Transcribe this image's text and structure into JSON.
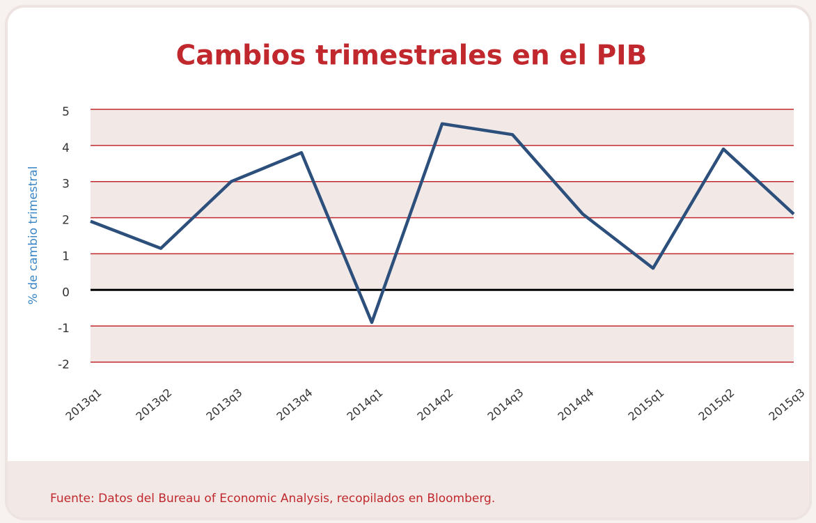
{
  "chart_data": {
    "type": "line",
    "title": "Cambios trimestrales en el PIB",
    "y_label": "% de cambio trimestral",
    "source": "Fuente: Datos del Bureau of Economic Analysis, recopilados en Bloomberg.",
    "categories": [
      "2013q1",
      "2013q2",
      "2013q3",
      "2013q4",
      "2014q1",
      "2014q2",
      "2014q3",
      "2014q4",
      "2015q1",
      "2015q2",
      "2015q3"
    ],
    "series": [
      {
        "name": "PIB",
        "color": "#2c4f7c",
        "values": [
          1.9,
          1.15,
          3.0,
          3.8,
          -0.9,
          4.6,
          4.3,
          2.1,
          0.6,
          3.9,
          2.1
        ]
      }
    ],
    "ylim": [
      -2,
      5
    ],
    "yticks": [
      -2,
      -1,
      0,
      1,
      2,
      3,
      4,
      5
    ],
    "grid": true,
    "grid_color": "#c0282d",
    "band_color": "#f2e9e6",
    "zero_line_color": "#000000",
    "title_color": "#c0282d",
    "y_label_color": "#3a86c6",
    "source_color": "#c0282d"
  }
}
